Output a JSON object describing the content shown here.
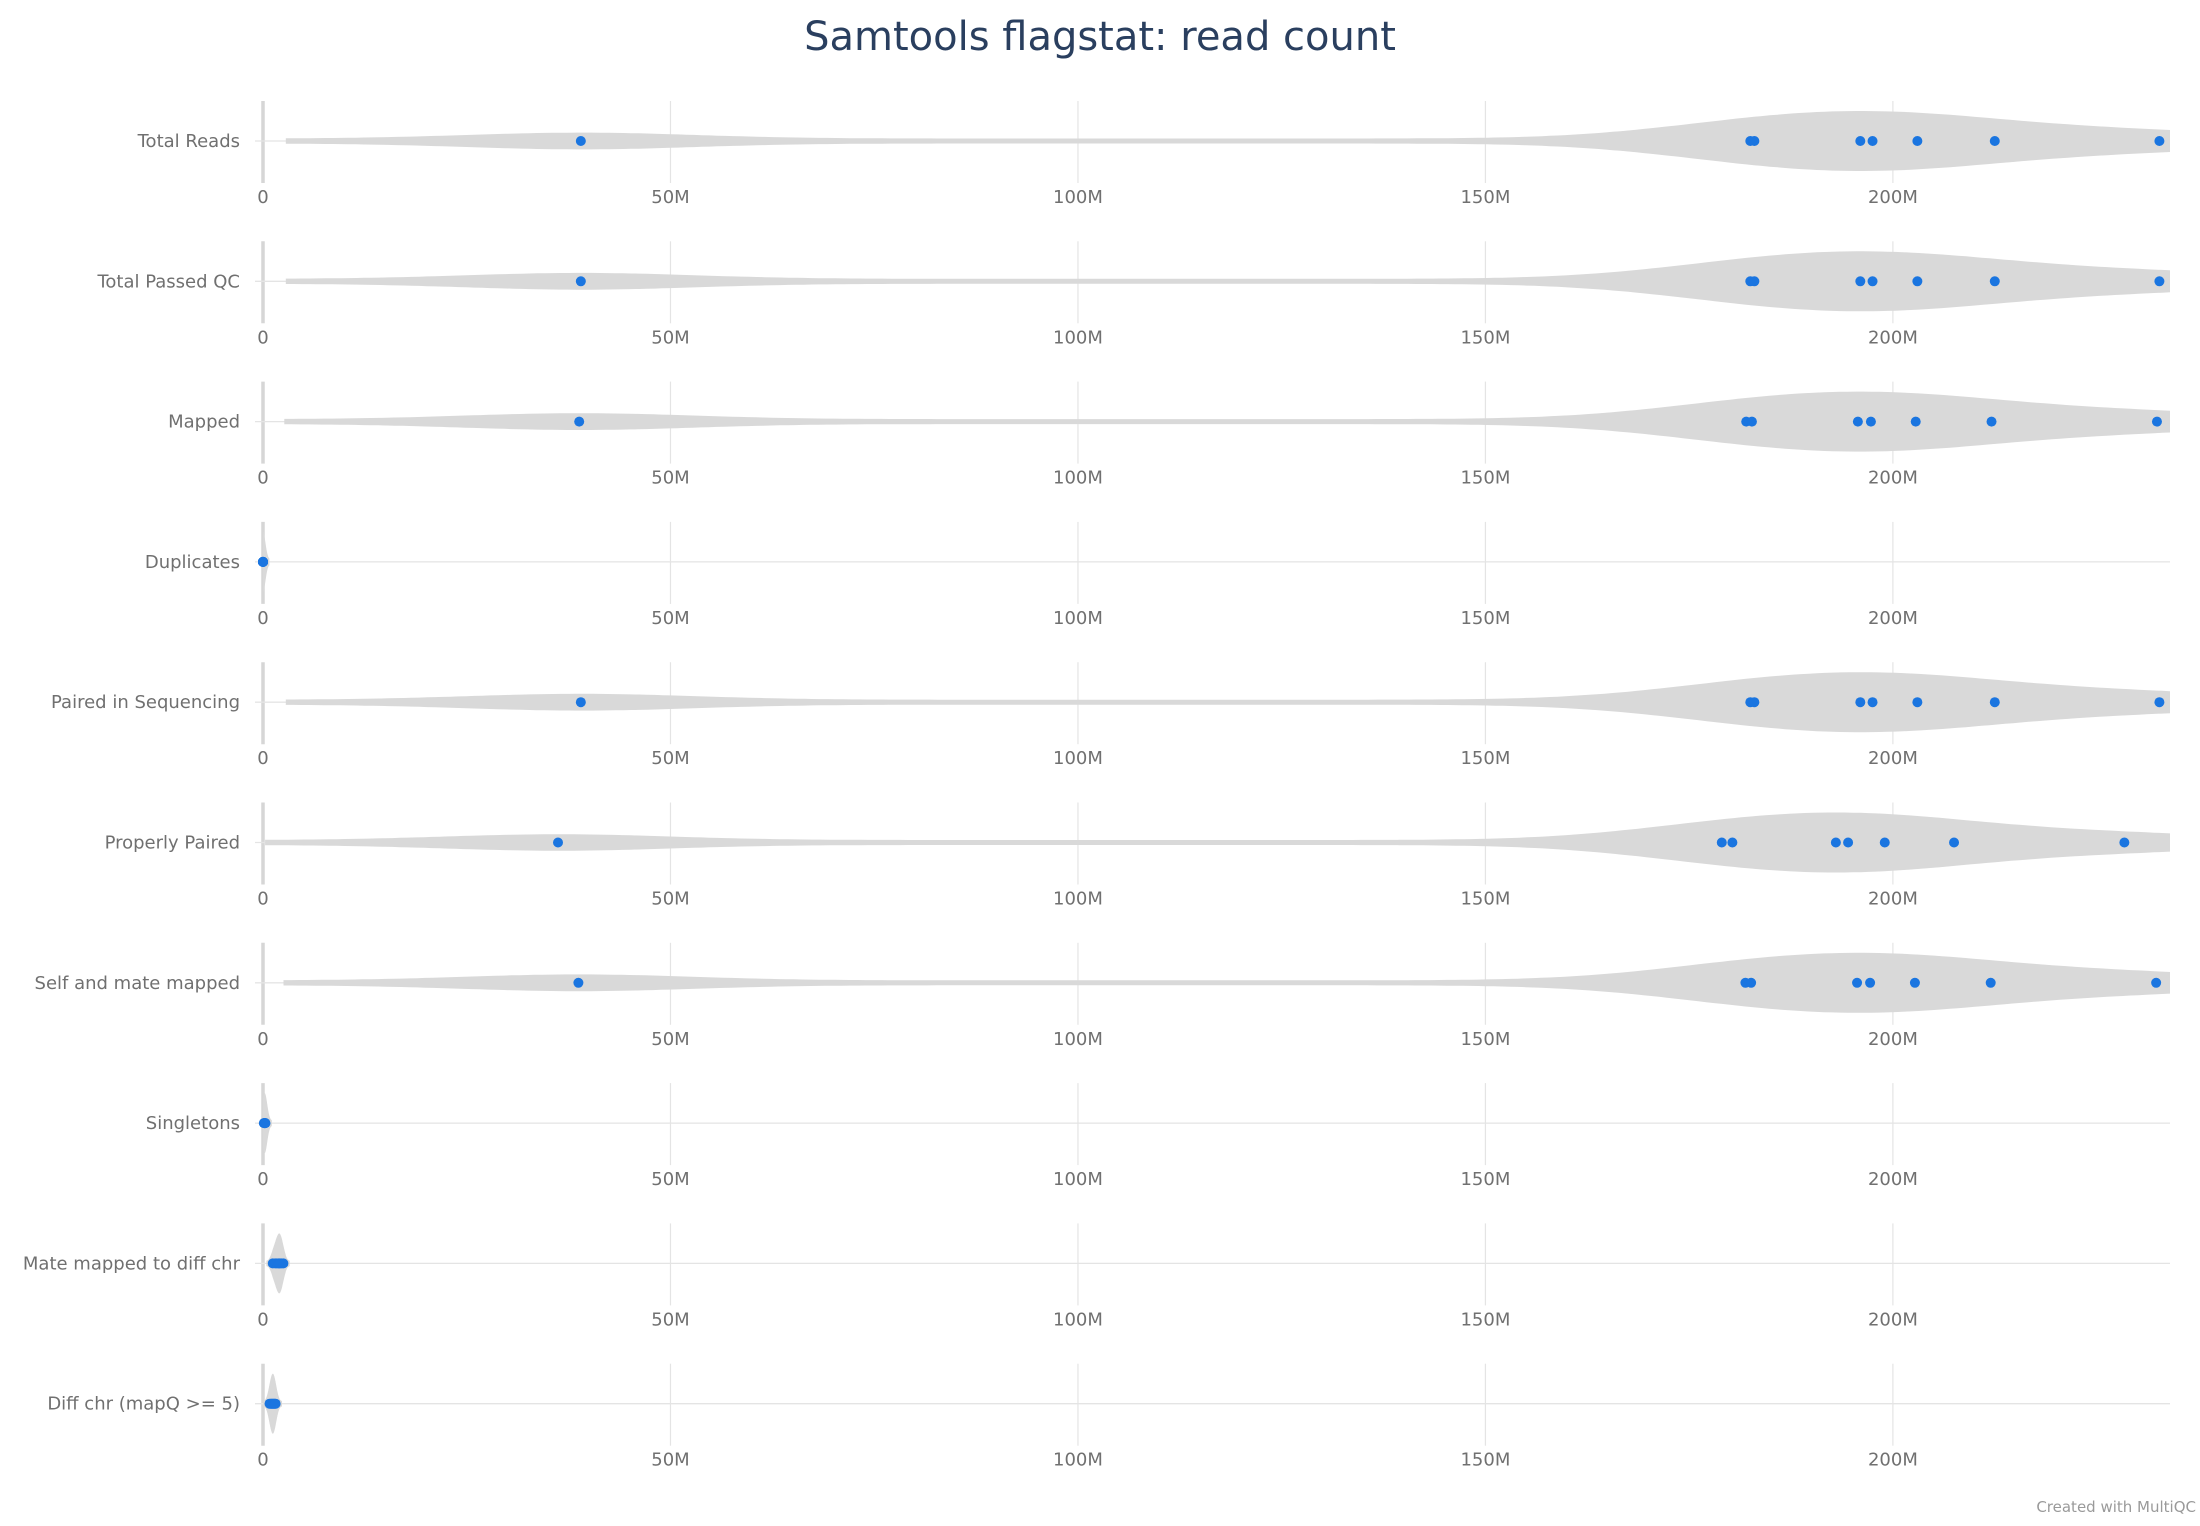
{
  "chart_data": {
    "type": "violin",
    "title": "Samtools flagstat: read count",
    "credit": "Created with MultiQC",
    "xlim": [
      0,
      234000000
    ],
    "ticks": [
      {
        "value": 0,
        "label": "0"
      },
      {
        "value": 50000000,
        "label": "50M"
      },
      {
        "value": 100000000,
        "label": "100M"
      },
      {
        "value": 150000000,
        "label": "150M"
      },
      {
        "value": 200000000,
        "label": "200M"
      }
    ],
    "colors": {
      "points": "#1a75e0",
      "violin": "#d9d9d9",
      "grid": "#e4e4e4",
      "zero_line": "#d6d6d6",
      "title": "#2a3f5f"
    },
    "series": [
      {
        "name": "Total Reads",
        "values": [
          39000000,
          182500000,
          183000000,
          196000000,
          197500000,
          203000000,
          212500000,
          232700000
        ]
      },
      {
        "name": "Total Passed QC",
        "values": [
          39000000,
          182500000,
          183000000,
          196000000,
          197500000,
          203000000,
          212500000,
          232700000
        ]
      },
      {
        "name": "Mapped",
        "values": [
          38800000,
          182000000,
          182700000,
          195700000,
          197300000,
          202800000,
          212100000,
          232400000
        ]
      },
      {
        "name": "Duplicates",
        "values": [
          0,
          0,
          0,
          0,
          0,
          0,
          0,
          0
        ]
      },
      {
        "name": "Paired in Sequencing",
        "values": [
          39000000,
          182500000,
          183000000,
          196000000,
          197500000,
          203000000,
          212500000,
          232700000
        ]
      },
      {
        "name": "Properly Paired",
        "values": [
          36200000,
          179000000,
          180300000,
          193000000,
          194500000,
          199000000,
          207500000,
          228400000
        ]
      },
      {
        "name": "Self and mate mapped",
        "values": [
          38700000,
          181900000,
          182600000,
          195600000,
          197200000,
          202700000,
          212000000,
          232300000
        ]
      },
      {
        "name": "Singletons",
        "values": [
          100000,
          150000,
          180000,
          200000,
          220000,
          250000,
          280000,
          300000
        ]
      },
      {
        "name": "Mate mapped to diff chr",
        "values": [
          1200000,
          1500000,
          1700000,
          1900000,
          2000000,
          2100000,
          2300000,
          2500000
        ]
      },
      {
        "name": "Diff chr (mapQ >= 5)",
        "values": [
          800000,
          950000,
          1050000,
          1150000,
          1250000,
          1350000,
          1450000,
          1550000
        ]
      }
    ]
  }
}
